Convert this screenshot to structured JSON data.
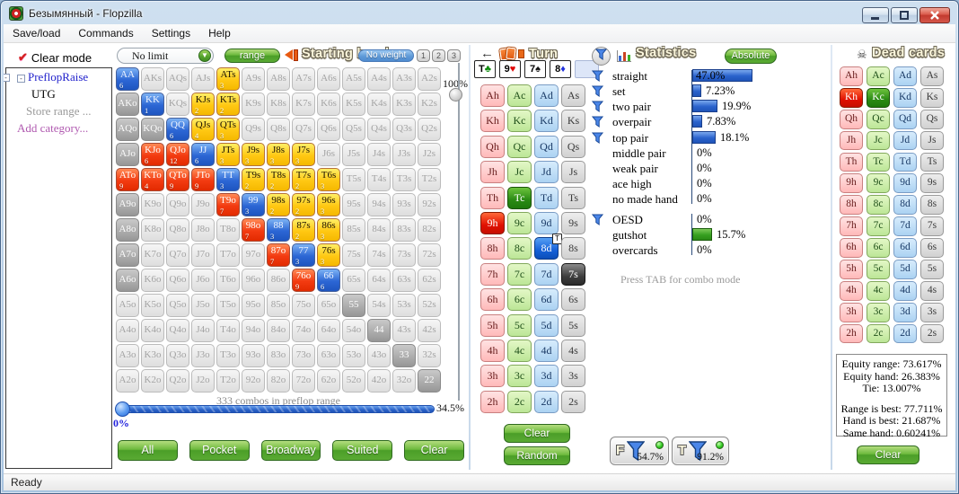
{
  "window": {
    "title": "Безымянный - Flopzilla",
    "status": "Ready"
  },
  "menu": [
    "Save/load",
    "Commands",
    "Settings",
    "Help"
  ],
  "sidebar": {
    "clear_mode": "Clear mode",
    "tree": [
      {
        "label": "PreflopRaise",
        "style": "category",
        "expander": true
      },
      {
        "label": "UTG",
        "style": "plain"
      },
      {
        "label": "Store range ...",
        "style": "muted"
      },
      {
        "label": "Add category...",
        "style": "action"
      }
    ]
  },
  "starting_hand": {
    "title": "Starting hand",
    "limit_select": "No limit",
    "range_button": "range",
    "no_weight": "No weight",
    "weight_buttons": [
      "1",
      "2",
      "3"
    ],
    "weight_slider_label": "100%",
    "combos_text": "333 combos in preflop range",
    "slider_value": "34.5%",
    "slider_min": "0%",
    "preset_buttons": [
      "All",
      "Pocket",
      "Broadway",
      "Suited",
      "Clear"
    ],
    "matrix": [
      [
        [
          "AA",
          "b",
          "6"
        ],
        [
          "AKs",
          "p",
          ""
        ],
        [
          "AQs",
          "p",
          ""
        ],
        [
          "AJs",
          "p",
          ""
        ],
        [
          "ATs",
          "y",
          "3"
        ],
        [
          "A9s",
          "p",
          ""
        ],
        [
          "A8s",
          "p",
          ""
        ],
        [
          "A7s",
          "p",
          ""
        ],
        [
          "A6s",
          "p",
          ""
        ],
        [
          "A5s",
          "p",
          ""
        ],
        [
          "A4s",
          "p",
          ""
        ],
        [
          "A3s",
          "p",
          ""
        ],
        [
          "A2s",
          "p",
          ""
        ]
      ],
      [
        [
          "AKo",
          "g",
          ""
        ],
        [
          "KK",
          "b",
          "1"
        ],
        [
          "KQs",
          "p",
          ""
        ],
        [
          "KJs",
          "y",
          "2"
        ],
        [
          "KTs",
          "y",
          "2"
        ],
        [
          "K9s",
          "p",
          ""
        ],
        [
          "K8s",
          "p",
          ""
        ],
        [
          "K7s",
          "p",
          ""
        ],
        [
          "K6s",
          "p",
          ""
        ],
        [
          "K5s",
          "p",
          ""
        ],
        [
          "K4s",
          "p",
          ""
        ],
        [
          "K3s",
          "p",
          ""
        ],
        [
          "K2s",
          "p",
          ""
        ]
      ],
      [
        [
          "AQo",
          "g",
          ""
        ],
        [
          "KQo",
          "g",
          ""
        ],
        [
          "QQ",
          "b",
          "6"
        ],
        [
          "QJs",
          "y",
          "4"
        ],
        [
          "QTs",
          "y",
          "3"
        ],
        [
          "Q9s",
          "p",
          ""
        ],
        [
          "Q8s",
          "p",
          ""
        ],
        [
          "Q7s",
          "p",
          ""
        ],
        [
          "Q6s",
          "p",
          ""
        ],
        [
          "Q5s",
          "p",
          ""
        ],
        [
          "Q4s",
          "p",
          ""
        ],
        [
          "Q3s",
          "p",
          ""
        ],
        [
          "Q2s",
          "p",
          ""
        ]
      ],
      [
        [
          "AJo",
          "g",
          ""
        ],
        [
          "KJo",
          "r",
          "6"
        ],
        [
          "QJo",
          "r",
          "12"
        ],
        [
          "JJ",
          "b",
          "6"
        ],
        [
          "JTs",
          "y",
          "3"
        ],
        [
          "J9s",
          "y",
          "3"
        ],
        [
          "J8s",
          "y",
          "3"
        ],
        [
          "J7s",
          "y",
          "3"
        ],
        [
          "J6s",
          "p",
          ""
        ],
        [
          "J5s",
          "p",
          ""
        ],
        [
          "J4s",
          "p",
          ""
        ],
        [
          "J3s",
          "p",
          ""
        ],
        [
          "J2s",
          "p",
          ""
        ]
      ],
      [
        [
          "ATo",
          "r",
          "9"
        ],
        [
          "KTo",
          "r",
          "4"
        ],
        [
          "QTo",
          "r",
          "9"
        ],
        [
          "JTo",
          "r",
          "9"
        ],
        [
          "TT",
          "b",
          "3"
        ],
        [
          "T9s",
          "y",
          "2"
        ],
        [
          "T8s",
          "y",
          "2"
        ],
        [
          "T7s",
          "y",
          "2"
        ],
        [
          "T6s",
          "y",
          "3"
        ],
        [
          "T5s",
          "p",
          ""
        ],
        [
          "T4s",
          "p",
          ""
        ],
        [
          "T3s",
          "p",
          ""
        ],
        [
          "T2s",
          "p",
          ""
        ]
      ],
      [
        [
          "A9o",
          "g",
          ""
        ],
        [
          "K9o",
          "p",
          ""
        ],
        [
          "Q9o",
          "p",
          ""
        ],
        [
          "J9o",
          "p",
          ""
        ],
        [
          "T9o",
          "r",
          "7"
        ],
        [
          "99",
          "b",
          "3"
        ],
        [
          "98s",
          "y",
          "2"
        ],
        [
          "97s",
          "y",
          "2"
        ],
        [
          "96s",
          "y",
          "3"
        ],
        [
          "95s",
          "p",
          ""
        ],
        [
          "94s",
          "p",
          ""
        ],
        [
          "93s",
          "p",
          ""
        ],
        [
          "92s",
          "p",
          ""
        ]
      ],
      [
        [
          "A8o",
          "g",
          ""
        ],
        [
          "K8o",
          "p",
          ""
        ],
        [
          "Q8o",
          "p",
          ""
        ],
        [
          "J8o",
          "p",
          ""
        ],
        [
          "T8o",
          "p",
          ""
        ],
        [
          "98o",
          "r",
          "7"
        ],
        [
          "88",
          "b",
          "3"
        ],
        [
          "87s",
          "y",
          "2"
        ],
        [
          "86s",
          "y",
          "3"
        ],
        [
          "85s",
          "p",
          ""
        ],
        [
          "84s",
          "p",
          ""
        ],
        [
          "83s",
          "p",
          ""
        ],
        [
          "82s",
          "p",
          ""
        ]
      ],
      [
        [
          "A7o",
          "g",
          ""
        ],
        [
          "K7o",
          "p",
          ""
        ],
        [
          "Q7o",
          "p",
          ""
        ],
        [
          "J7o",
          "p",
          ""
        ],
        [
          "T7o",
          "p",
          ""
        ],
        [
          "97o",
          "p",
          ""
        ],
        [
          "87o",
          "r",
          "7"
        ],
        [
          "77",
          "b",
          "3"
        ],
        [
          "76s",
          "y",
          "3"
        ],
        [
          "75s",
          "p",
          ""
        ],
        [
          "74s",
          "p",
          ""
        ],
        [
          "73s",
          "p",
          ""
        ],
        [
          "72s",
          "p",
          ""
        ]
      ],
      [
        [
          "A6o",
          "g",
          ""
        ],
        [
          "K6o",
          "p",
          ""
        ],
        [
          "Q6o",
          "p",
          ""
        ],
        [
          "J6o",
          "p",
          ""
        ],
        [
          "T6o",
          "p",
          ""
        ],
        [
          "96o",
          "p",
          ""
        ],
        [
          "86o",
          "p",
          ""
        ],
        [
          "76o",
          "r",
          "9"
        ],
        [
          "66",
          "b",
          "6"
        ],
        [
          "65s",
          "p",
          ""
        ],
        [
          "64s",
          "p",
          ""
        ],
        [
          "63s",
          "p",
          ""
        ],
        [
          "62s",
          "p",
          ""
        ]
      ],
      [
        [
          "A5o",
          "p",
          ""
        ],
        [
          "K5o",
          "p",
          ""
        ],
        [
          "Q5o",
          "p",
          ""
        ],
        [
          "J5o",
          "p",
          ""
        ],
        [
          "T5o",
          "p",
          ""
        ],
        [
          "95o",
          "p",
          ""
        ],
        [
          "85o",
          "p",
          ""
        ],
        [
          "75o",
          "p",
          ""
        ],
        [
          "65o",
          "p",
          ""
        ],
        [
          "55",
          "g",
          ""
        ],
        [
          "54s",
          "p",
          ""
        ],
        [
          "53s",
          "p",
          ""
        ],
        [
          "52s",
          "p",
          ""
        ]
      ],
      [
        [
          "A4o",
          "p",
          ""
        ],
        [
          "K4o",
          "p",
          ""
        ],
        [
          "Q4o",
          "p",
          ""
        ],
        [
          "J4o",
          "p",
          ""
        ],
        [
          "T4o",
          "p",
          ""
        ],
        [
          "94o",
          "p",
          ""
        ],
        [
          "84o",
          "p",
          ""
        ],
        [
          "74o",
          "p",
          ""
        ],
        [
          "64o",
          "p",
          ""
        ],
        [
          "54o",
          "p",
          ""
        ],
        [
          "44",
          "g",
          ""
        ],
        [
          "43s",
          "p",
          ""
        ],
        [
          "42s",
          "p",
          ""
        ]
      ],
      [
        [
          "A3o",
          "p",
          ""
        ],
        [
          "K3o",
          "p",
          ""
        ],
        [
          "Q3o",
          "p",
          ""
        ],
        [
          "J3o",
          "p",
          ""
        ],
        [
          "T3o",
          "p",
          ""
        ],
        [
          "93o",
          "p",
          ""
        ],
        [
          "83o",
          "p",
          ""
        ],
        [
          "73o",
          "p",
          ""
        ],
        [
          "63o",
          "p",
          ""
        ],
        [
          "53o",
          "p",
          ""
        ],
        [
          "43o",
          "p",
          ""
        ],
        [
          "33",
          "g",
          ""
        ],
        [
          "32s",
          "p",
          ""
        ]
      ],
      [
        [
          "A2o",
          "p",
          ""
        ],
        [
          "K2o",
          "p",
          ""
        ],
        [
          "Q2o",
          "p",
          ""
        ],
        [
          "J2o",
          "p",
          ""
        ],
        [
          "T2o",
          "p",
          ""
        ],
        [
          "92o",
          "p",
          ""
        ],
        [
          "82o",
          "p",
          ""
        ],
        [
          "72o",
          "p",
          ""
        ],
        [
          "62o",
          "p",
          ""
        ],
        [
          "52o",
          "p",
          ""
        ],
        [
          "42o",
          "p",
          ""
        ],
        [
          "32o",
          "p",
          ""
        ],
        [
          "22",
          "g",
          ""
        ]
      ]
    ]
  },
  "turn": {
    "title": "Turn",
    "board": [
      {
        "rank": "T",
        "suit": "club",
        "symbol": "♣"
      },
      {
        "rank": "9",
        "suit": "heart",
        "symbol": "♥"
      },
      {
        "rank": "7",
        "suit": "spade",
        "symbol": "♠"
      },
      {
        "rank": "8",
        "suit": "diamond",
        "symbol": "♦"
      }
    ],
    "ranks": [
      "A",
      "K",
      "Q",
      "J",
      "T",
      "9",
      "8",
      "7",
      "6",
      "5",
      "4",
      "3",
      "2"
    ],
    "suits": [
      "h",
      "c",
      "d",
      "s"
    ],
    "selected": [
      {
        "card": "9h"
      },
      {
        "card": "Tc"
      },
      {
        "card": "8d",
        "tag": "T"
      },
      {
        "card": "7s"
      }
    ],
    "clear_button": "Clear",
    "random_button": "Random"
  },
  "statistics": {
    "title": "Statistics",
    "absolute_button": "Absolute",
    "made_hands": [
      {
        "label": "straight",
        "value": "47.0%",
        "pct": 47.0,
        "funnel": true
      },
      {
        "label": "set",
        "value": "7.23%",
        "pct": 7.23,
        "funnel": true
      },
      {
        "label": "two pair",
        "value": "19.9%",
        "pct": 19.9,
        "funnel": true
      },
      {
        "label": "overpair",
        "value": "7.83%",
        "pct": 7.83,
        "funnel": true
      },
      {
        "label": "top pair",
        "value": "18.1%",
        "pct": 18.1,
        "funnel": true
      },
      {
        "label": "middle pair",
        "value": "0%",
        "pct": 0,
        "funnel": false
      },
      {
        "label": "weak pair",
        "value": "0%",
        "pct": 0,
        "funnel": false
      },
      {
        "label": "ace high",
        "value": "0%",
        "pct": 0,
        "funnel": false
      },
      {
        "label": "no made hand",
        "value": "0%",
        "pct": 0,
        "funnel": false
      }
    ],
    "draws": [
      {
        "label": "OESD",
        "value": "0%",
        "pct": 0,
        "funnel": true
      },
      {
        "label": "gutshot",
        "value": "15.7%",
        "pct": 15.7,
        "funnel": false,
        "color": "green"
      },
      {
        "label": "overcards",
        "value": "0%",
        "pct": 0,
        "funnel": false
      }
    ],
    "combo_hint": "Press TAB for combo mode",
    "filters": [
      {
        "letter": "F",
        "value": "54.7%"
      },
      {
        "letter": "T",
        "value": "91.2%"
      }
    ]
  },
  "dead_cards": {
    "title": "Dead cards",
    "selected": [
      {
        "card": "Kh"
      },
      {
        "card": "Kc"
      }
    ],
    "equity_lines": [
      "Equity range: 73.617%",
      "Equity hand: 26.383%",
      "Tie: 13.007%",
      "Range is best: 77.711%",
      "Hand is best: 21.687%",
      "Same hand: 0.60241%"
    ],
    "clear_button": "Clear"
  },
  "colors": {
    "range_blue": "#2c66d4",
    "range_yellow": "#ffc813",
    "range_red": "#f33b11",
    "range_gray": "#969696",
    "bar_blue": "#2a62cc",
    "bar_green": "#36a020",
    "selected_heart": "#e01000",
    "selected_club": "#2a8a14",
    "selected_diamond": "#1560d8",
    "selected_spade": "#3e3e3e",
    "button_green": "#4b9e28",
    "weight_pill_blue": "#5f9ad8"
  }
}
